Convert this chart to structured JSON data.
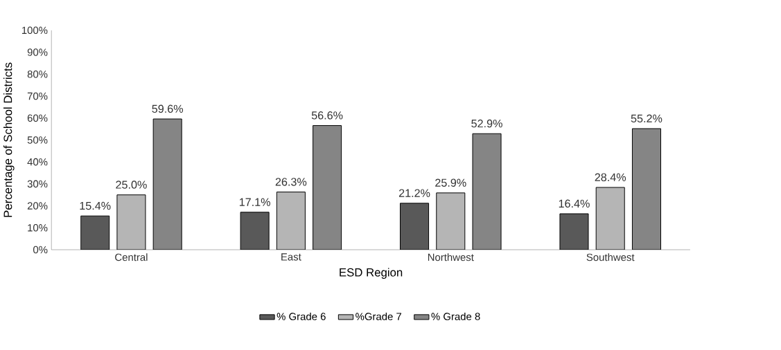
{
  "chart_data": {
    "type": "bar",
    "xlabel": "ESD Region",
    "ylabel": "Percentage of School Districts",
    "categories": [
      "Central",
      "East",
      "Northwest",
      "Southwest"
    ],
    "series": [
      {
        "name": "% Grade 6",
        "color": "#595959",
        "values": [
          15.4,
          17.1,
          21.2,
          16.4
        ],
        "value_labels": [
          "15.4%",
          "17.1%",
          "21.2%",
          "16.4%"
        ]
      },
      {
        "name": "%Grade 7",
        "color": "#b5b5b5",
        "values": [
          25.0,
          26.3,
          25.9,
          28.4
        ],
        "value_labels": [
          "25.0%",
          "26.3%",
          "25.9%",
          "28.4%"
        ]
      },
      {
        "name": "% Grade 8",
        "color": "#858585",
        "values": [
          59.6,
          56.6,
          52.9,
          55.2
        ],
        "value_labels": [
          "59.6%",
          "56.6%",
          "52.9%",
          "55.2%"
        ]
      }
    ],
    "ylim": [
      0,
      100
    ],
    "yticks": [
      {
        "value": 0,
        "label": "0%"
      },
      {
        "value": 10,
        "label": "10%"
      },
      {
        "value": 20,
        "label": "20%"
      },
      {
        "value": 30,
        "label": "30%"
      },
      {
        "value": 40,
        "label": "40%"
      },
      {
        "value": 50,
        "label": "50%"
      },
      {
        "value": 60,
        "label": "60%"
      },
      {
        "value": 70,
        "label": "70%"
      },
      {
        "value": 80,
        "label": "80%"
      },
      {
        "value": 90,
        "label": "90%"
      },
      {
        "value": 100,
        "label": "100%"
      }
    ],
    "grid": false,
    "legend": "bottom"
  }
}
